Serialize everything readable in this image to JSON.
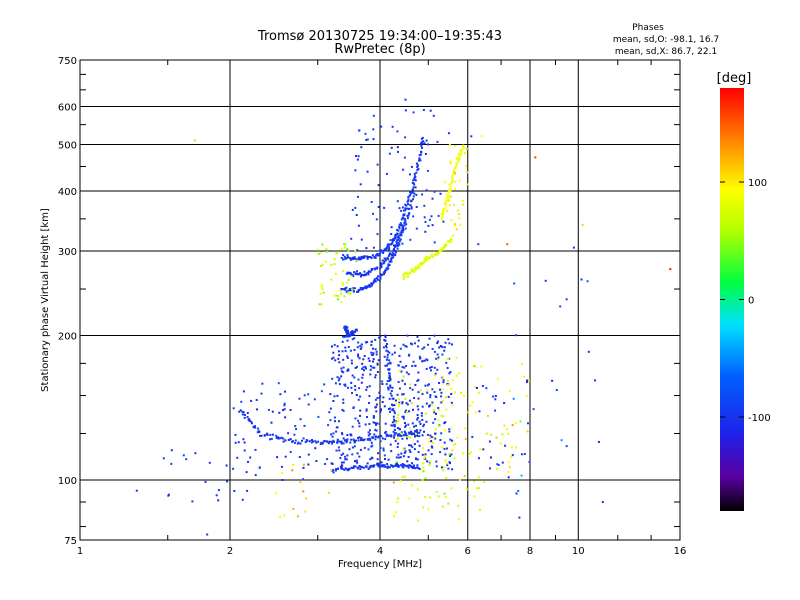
{
  "chart_data": {
    "type": "scatter",
    "title": "Tromsø 20130725 19:34:00–19:35:43",
    "subtitle": "RwPretec (8p)",
    "xlabel": "Frequency [MHz]",
    "ylabel": "Stationary phase Virtual Height [km]",
    "x_scale": "log",
    "y_scale": "log",
    "xlim": [
      1,
      16
    ],
    "ylim": [
      75,
      750
    ],
    "x_ticks": [
      1,
      2,
      4,
      6,
      8,
      10,
      16
    ],
    "x_tick_labels": [
      "1",
      "2",
      "4",
      "6",
      "8",
      "10",
      "16"
    ],
    "y_ticks": [
      75,
      100,
      200,
      300,
      400,
      500,
      600,
      750
    ],
    "y_tick_labels": [
      "75",
      "100",
      "200",
      "300",
      "400",
      "500",
      "600",
      "750"
    ],
    "grid": true,
    "stats_title": "Phases",
    "stats_lines": [
      "mean, sd,O: -98.1, 16.7",
      "mean, sd,X: 86.7, 22.1"
    ],
    "colorbar": {
      "label": "[deg]",
      "range": [
        -180,
        180
      ],
      "ticks": [
        100,
        0,
        -100
      ],
      "tick_labels": [
        "100",
        "0",
        "-100"
      ],
      "colormap": "rainbow"
    },
    "traces": [
      {
        "kind": "O",
        "phase": -98,
        "path": [
          [
            3.2,
            105
          ],
          [
            3.6,
            106
          ],
          [
            4.0,
            107
          ],
          [
            4.4,
            107
          ],
          [
            4.8,
            106
          ]
        ]
      },
      {
        "kind": "O",
        "phase": -98,
        "path": [
          [
            2.1,
            140
          ],
          [
            2.3,
            125
          ],
          [
            2.6,
            121
          ],
          [
            3.0,
            120
          ],
          [
            3.4,
            120
          ],
          [
            3.8,
            122
          ],
          [
            4.2,
            124
          ],
          [
            4.6,
            125
          ],
          [
            4.8,
            125
          ]
        ]
      },
      {
        "kind": "O",
        "phase": -98,
        "path": [
          [
            3.35,
            290
          ],
          [
            3.6,
            290
          ],
          [
            3.9,
            292
          ],
          [
            4.15,
            305
          ],
          [
            4.35,
            330
          ],
          [
            4.55,
            380
          ],
          [
            4.75,
            440
          ],
          [
            4.9,
            520
          ]
        ]
      },
      {
        "kind": "O",
        "phase": -98,
        "path": [
          [
            3.35,
            250
          ],
          [
            3.6,
            248
          ],
          [
            3.85,
            255
          ],
          [
            4.1,
            272
          ],
          [
            4.3,
            300
          ],
          [
            4.5,
            345
          ],
          [
            4.7,
            400
          ]
        ]
      },
      {
        "kind": "O",
        "phase": -98,
        "path": [
          [
            3.45,
            270
          ],
          [
            3.7,
            268
          ],
          [
            4.0,
            278
          ],
          [
            4.25,
            300
          ],
          [
            4.5,
            345
          ]
        ]
      },
      {
        "kind": "O",
        "phase": -98,
        "path": [
          [
            3.4,
            210
          ],
          [
            3.45,
            200
          ],
          [
            3.6,
            205
          ]
        ]
      },
      {
        "kind": "O",
        "phase": -98,
        "path": [
          [
            4.1,
            200
          ],
          [
            4.2,
            160
          ],
          [
            4.3,
            125
          ]
        ]
      },
      {
        "kind": "X",
        "phase": 80,
        "path": [
          [
            4.45,
            265
          ],
          [
            4.7,
            275
          ],
          [
            4.95,
            288
          ],
          [
            5.3,
            300
          ],
          [
            5.6,
            320
          ]
        ]
      },
      {
        "kind": "X",
        "phase": 90,
        "path": [
          [
            5.3,
            350
          ],
          [
            5.5,
            400
          ],
          [
            5.7,
            460
          ],
          [
            5.9,
            500
          ]
        ]
      }
    ],
    "clusters": [
      {
        "x_range": [
          3.2,
          5.6
        ],
        "y_range": [
          105,
          200
        ],
        "count": 520,
        "phase": -100,
        "sd": 20
      },
      {
        "x_range": [
          4.3,
          6.0
        ],
        "y_range": [
          100,
          180
        ],
        "count": 90,
        "phase": 80,
        "sd": 35
      },
      {
        "x_range": [
          2.0,
          3.2
        ],
        "y_range": [
          100,
          160
        ],
        "count": 70,
        "phase": -95,
        "sd": 30
      },
      {
        "x_range": [
          3.0,
          3.6
        ],
        "y_range": [
          230,
          310
        ],
        "count": 50,
        "phase": 70,
        "sd": 40
      },
      {
        "x_range": [
          3.5,
          5.5
        ],
        "y_range": [
          300,
          600
        ],
        "count": 90,
        "phase": -95,
        "sd": 20
      },
      {
        "x_range": [
          5.4,
          6.0
        ],
        "y_range": [
          330,
          500
        ],
        "count": 30,
        "phase": 95,
        "sd": 25
      },
      {
        "x_range": [
          6.0,
          8.0
        ],
        "y_range": [
          95,
          175
        ],
        "count": 40,
        "phase": 85,
        "sd": 40
      },
      {
        "x_range": [
          6.0,
          8.0
        ],
        "y_range": [
          100,
          160
        ],
        "count": 25,
        "phase": -100,
        "sd": 20
      },
      {
        "x_range": [
          1.4,
          2.2
        ],
        "y_range": [
          90,
          120
        ],
        "count": 22,
        "phase": -100,
        "sd": 20
      },
      {
        "x_range": [
          7.0,
          11.0
        ],
        "y_range": [
          82,
          310
        ],
        "count": 18,
        "phase": -90,
        "sd": 50
      },
      {
        "x_range": [
          2.4,
          3.2
        ],
        "y_range": [
          82,
          110
        ],
        "count": 15,
        "phase": 110,
        "sd": 30
      },
      {
        "x_range": [
          4.2,
          6.5
        ],
        "y_range": [
          82,
          100
        ],
        "count": 30,
        "phase": 90,
        "sd": 40
      }
    ],
    "points": [
      [
        1.7,
        510,
        50
      ],
      [
        15.3,
        275,
        170
      ],
      [
        8.2,
        470,
        160
      ],
      [
        10.2,
        340,
        110
      ],
      [
        9.8,
        305,
        -100
      ],
      [
        6.3,
        310,
        -95
      ],
      [
        7.2,
        310,
        150
      ],
      [
        8.6,
        260,
        -100
      ],
      [
        9.2,
        230,
        -90
      ],
      [
        10.5,
        185,
        -100
      ],
      [
        11.0,
        120,
        -100
      ],
      [
        11.2,
        90,
        -100
      ],
      [
        1.3,
        95,
        -100
      ],
      [
        1.8,
        77,
        -100
      ],
      [
        4.9,
        590,
        -100
      ],
      [
        4.5,
        620,
        -100
      ],
      [
        6.1,
        520,
        -100
      ],
      [
        6.4,
        520,
        90
      ]
    ]
  }
}
